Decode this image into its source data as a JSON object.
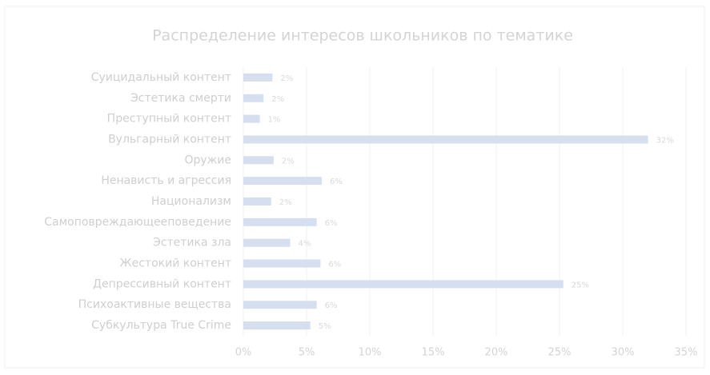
{
  "chart_data": {
    "type": "bar",
    "orientation": "horizontal",
    "title": "Распределение интересов школьников по тематике",
    "categories": [
      "Суицидальный контент",
      "Эстетика смерти",
      "Преступный контент",
      "Вульгарный контент",
      "Оружие",
      "Ненависть и агрессия",
      "Национализм",
      "Самоповреждающееповедение",
      "Эстетика зла",
      "Жестокий контент",
      "Депрессивный контент",
      "Психоактивные вещества",
      "Субкультура True Crime"
    ],
    "values": [
      2.3,
      1.6,
      1.3,
      32,
      2.4,
      6.2,
      2.2,
      5.8,
      3.7,
      6.1,
      25.3,
      5.8,
      5.3
    ],
    "value_labels": [
      "2%",
      "2%",
      "1%",
      "32%",
      "2%",
      "6%",
      "2%",
      "6%",
      "4%",
      "6%",
      "25%",
      "6%",
      "5%"
    ],
    "color": "#d5dfef",
    "xlim": [
      0,
      35
    ],
    "xticks": [
      {
        "value": 0,
        "label": "0%"
      },
      {
        "value": 5,
        "label": "5%"
      },
      {
        "value": 10,
        "label": "10%"
      },
      {
        "value": 15,
        "label": "15%"
      },
      {
        "value": 20,
        "label": "20%"
      },
      {
        "value": 25,
        "label": "25%"
      },
      {
        "value": 30,
        "label": "30%"
      },
      {
        "value": 35,
        "label": "35%"
      }
    ],
    "grid": true
  }
}
